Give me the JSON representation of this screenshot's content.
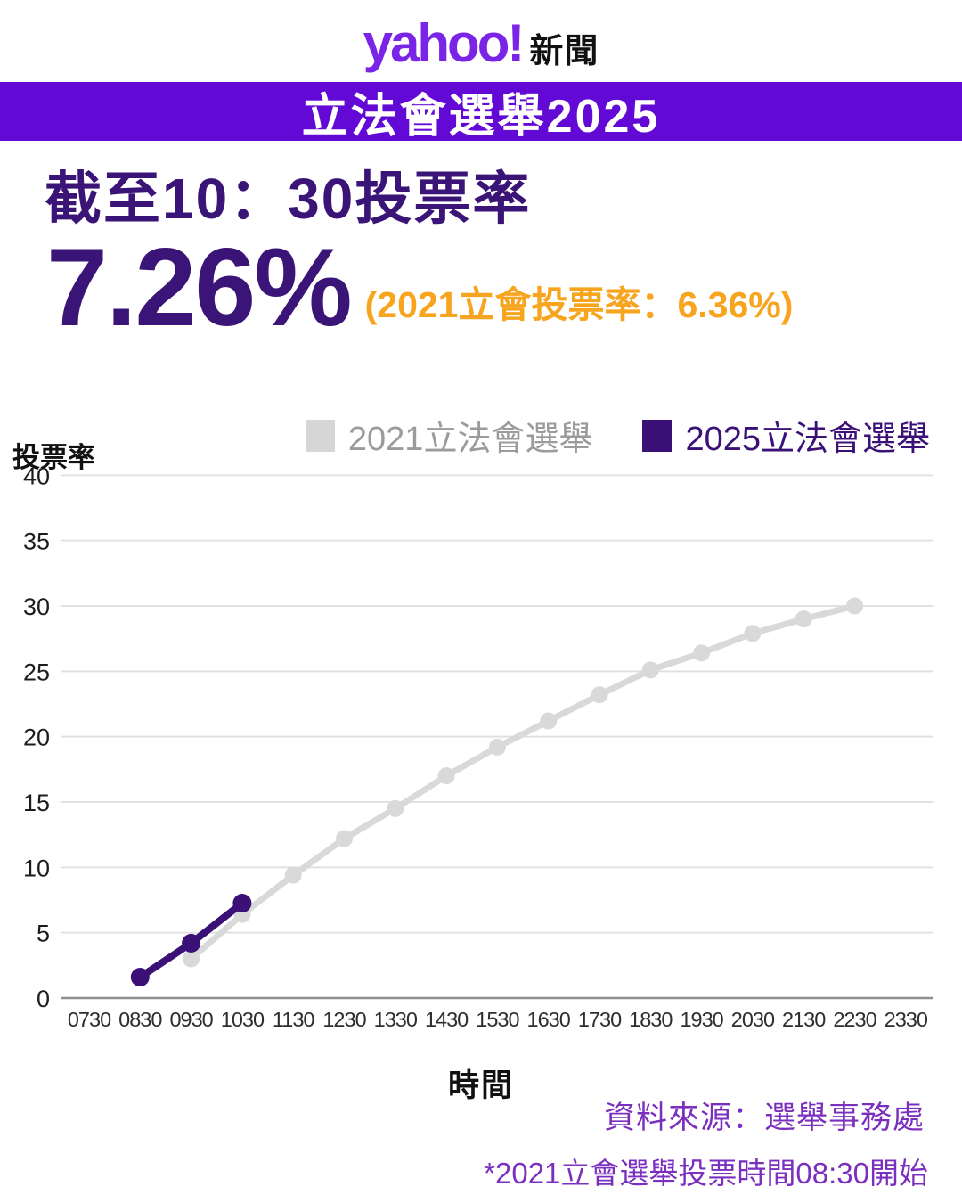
{
  "header": {
    "logo_brand": "yahoo!",
    "logo_suffix": "新聞",
    "banner": "立法會選舉2025"
  },
  "headline": {
    "title": "截至10：30投票率",
    "big_number": "7.26%",
    "comparison": "(2021立會投票率：6.36%)"
  },
  "legend": [
    {
      "label": "2021立法會選舉",
      "swatch_color": "#d6d6d6",
      "text_color": "#9b9b9b"
    },
    {
      "label": "2025立法會選舉",
      "swatch_color": "#3b1178",
      "text_color": "#3b1178"
    }
  ],
  "chart_data": {
    "type": "line",
    "title": "",
    "xlabel": "時間",
    "ylabel": "投票率",
    "ylim": [
      0,
      40
    ],
    "ytick_interval": 5,
    "grid": true,
    "legend_position": "top-right",
    "x_categories": [
      "0730",
      "0830",
      "0930",
      "1030",
      "1130",
      "1230",
      "1330",
      "1430",
      "1530",
      "1630",
      "1730",
      "1830",
      "1930",
      "2030",
      "2130",
      "2230",
      "2330"
    ],
    "series": [
      {
        "name": "2021立法會選舉",
        "color": "#d9d9d9",
        "x": [
          "0930",
          "1030",
          "1130",
          "1230",
          "1330",
          "1430",
          "1530",
          "1630",
          "1730",
          "1830",
          "1930",
          "2030",
          "2130",
          "2230"
        ],
        "values": [
          3,
          6.4,
          9.4,
          12.2,
          14.5,
          17,
          19.2,
          21.2,
          23.2,
          25.1,
          26.4,
          27.9,
          29,
          30
        ]
      },
      {
        "name": "2025立法會選舉",
        "color": "#3b1178",
        "x": [
          "0830",
          "0930",
          "1030"
        ],
        "values": [
          1.6,
          4.2,
          7.26
        ]
      }
    ]
  },
  "footer": {
    "source": "資料來源：選舉事務處",
    "note": "*2021立會選舉投票時間08:30開始"
  },
  "colors": {
    "brand_purple": "#6209d6",
    "deep_purple": "#3b1478",
    "accent_orange": "#f7a41e",
    "footer_purple": "#7b2fbf",
    "gray_series": "#d9d9d9",
    "gridline": "#e1e1e1",
    "axis_line": "#8f8f8f"
  }
}
